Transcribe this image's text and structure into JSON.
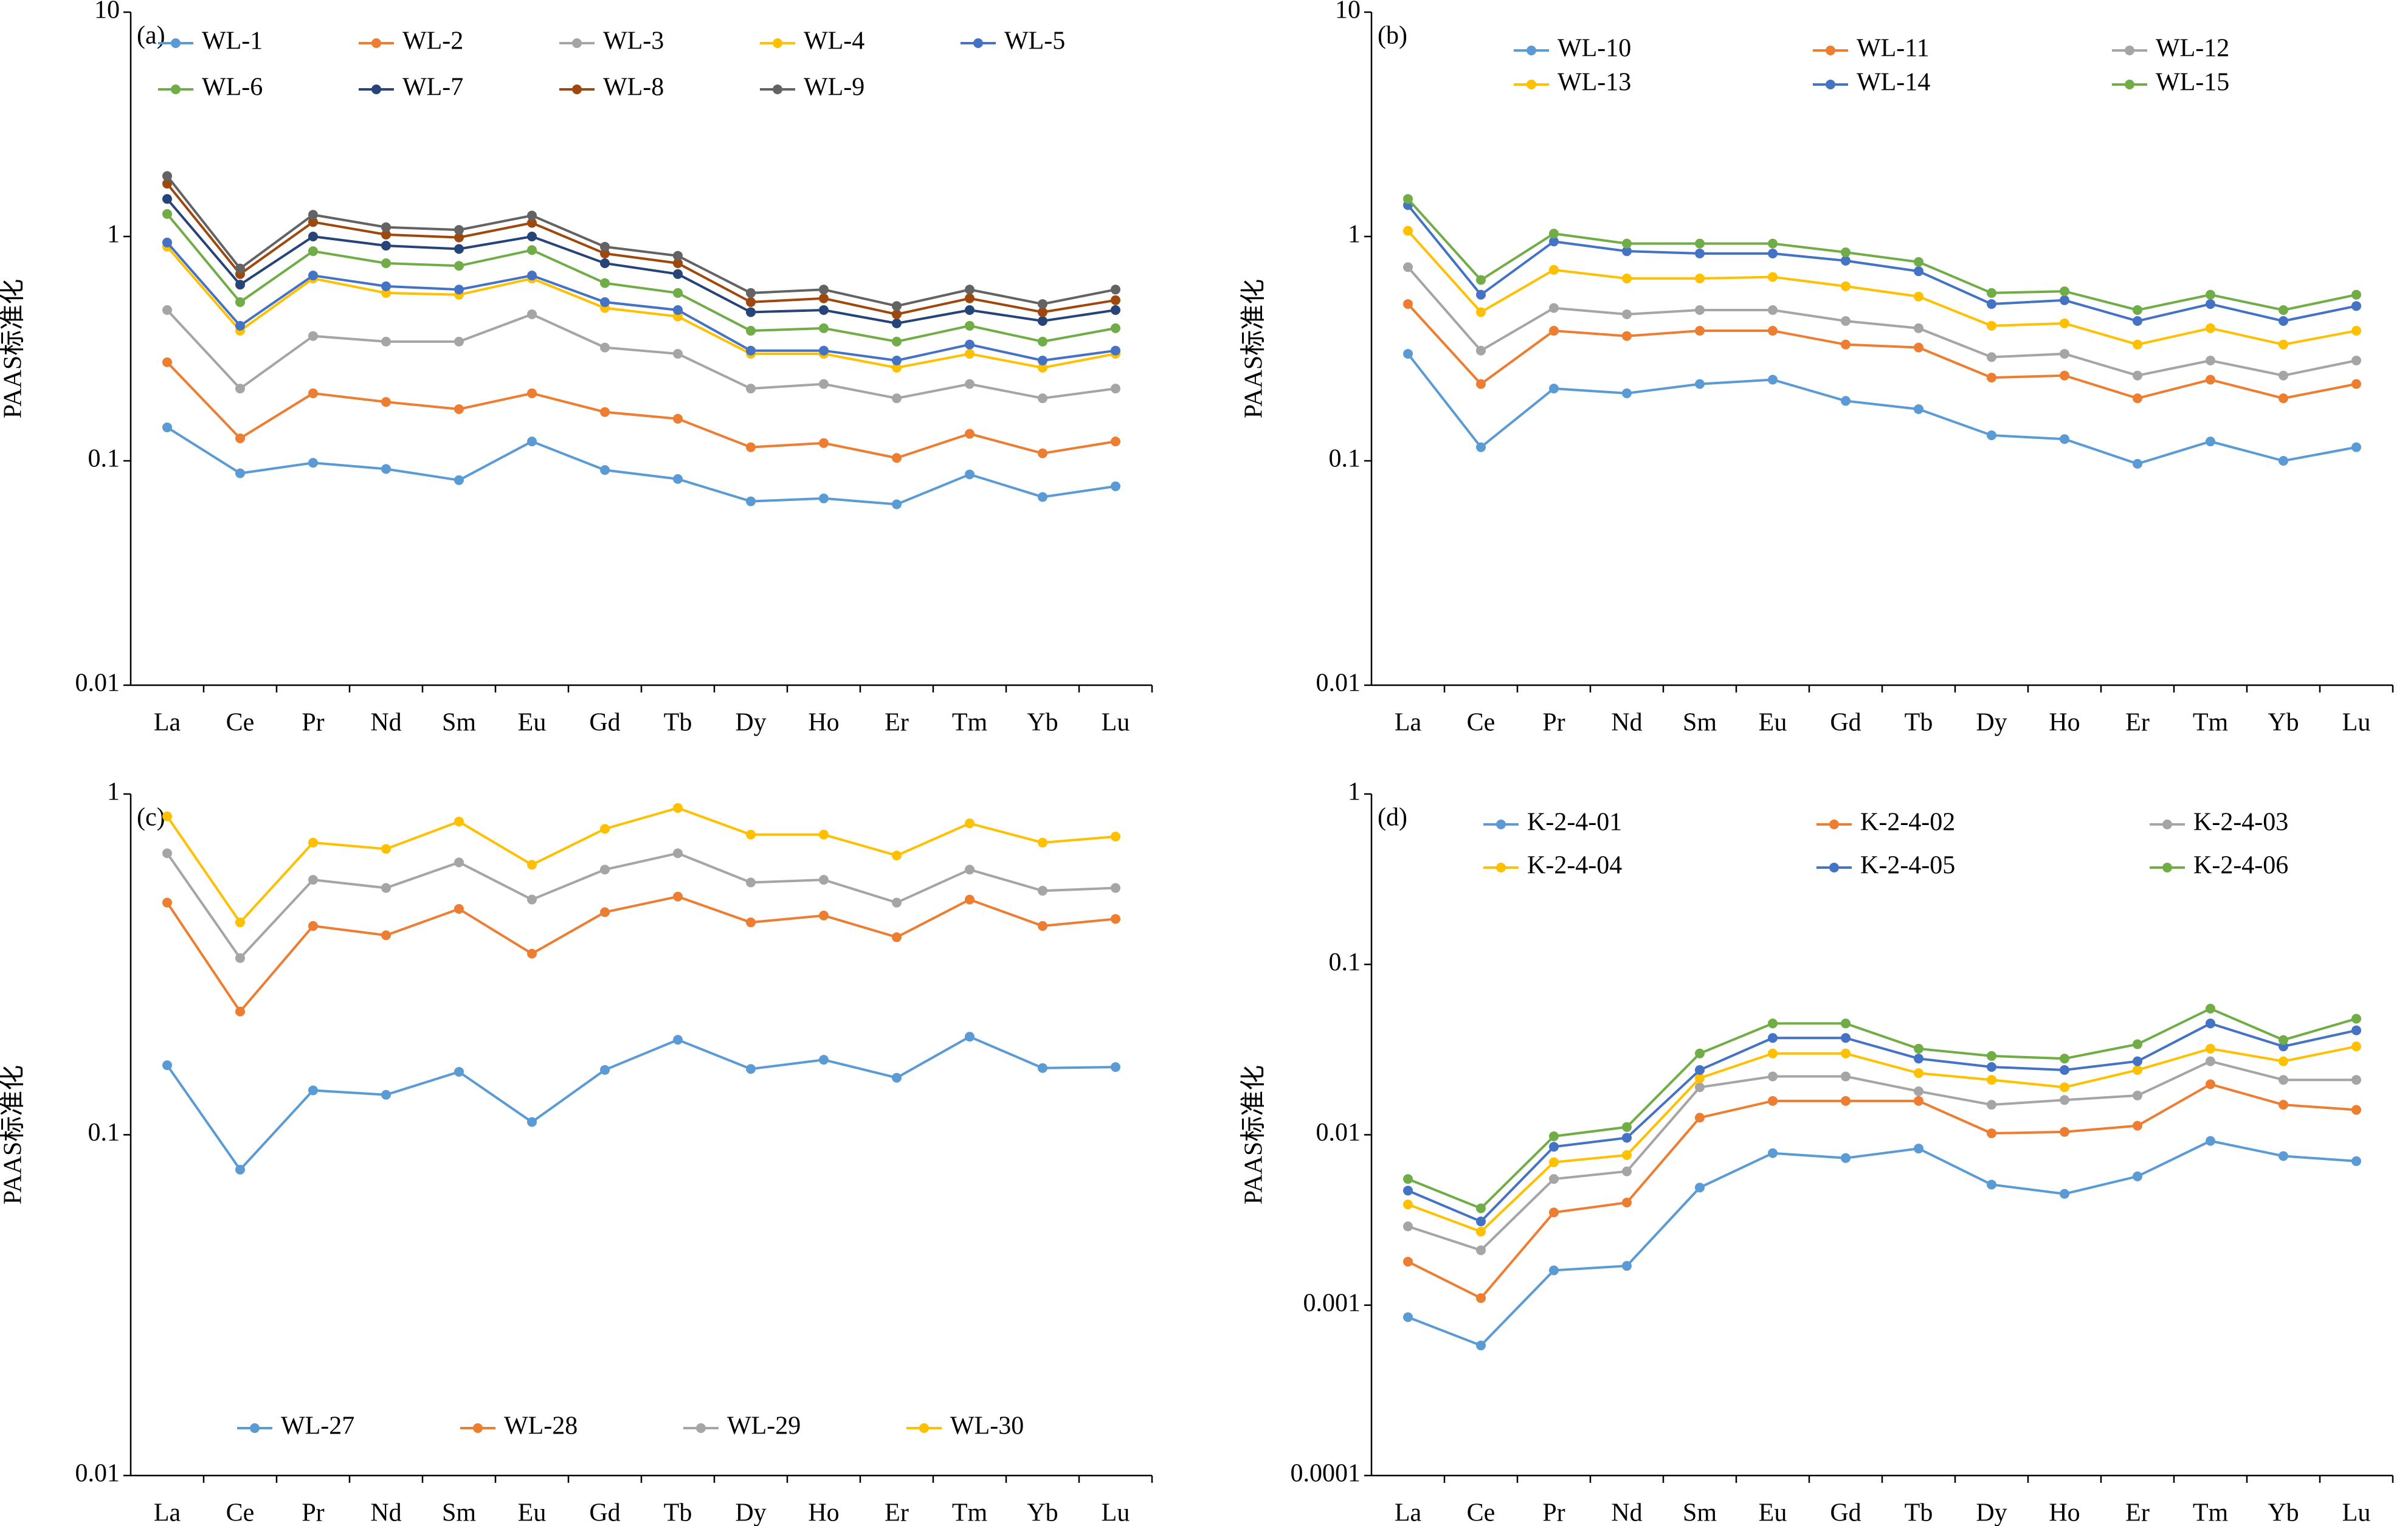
{
  "chart_data": [
    {
      "type": "line",
      "title": "(a)",
      "y_label": "PAAS标准化",
      "yscale": "log",
      "grid": false,
      "legend": "top",
      "categories": [
        "La",
        "Ce",
        "Pr",
        "Nd",
        "Sm",
        "Eu",
        "Gd",
        "Tb",
        "Dy",
        "Ho",
        "Er",
        "Tm",
        "Yb",
        "Lu"
      ],
      "ylim": [
        0.01,
        10
      ],
      "yticks": [
        0.01,
        0.1,
        1,
        10
      ],
      "series": [
        {
          "name": "WL-1",
          "color": "#5b9bd5",
          "values": [
            0.141,
            0.088,
            0.098,
            0.092,
            0.082,
            0.122,
            0.091,
            0.083,
            0.066,
            0.068,
            0.064,
            0.087,
            0.069,
            0.077
          ]
        },
        {
          "name": "WL-2",
          "color": "#ed7d31",
          "values": [
            0.275,
            0.126,
            0.2,
            0.183,
            0.17,
            0.2,
            0.165,
            0.154,
            0.115,
            0.12,
            0.103,
            0.132,
            0.108,
            0.122
          ]
        },
        {
          "name": "WL-3",
          "color": "#a5a5a5",
          "values": [
            0.47,
            0.21,
            0.36,
            0.34,
            0.34,
            0.45,
            0.32,
            0.3,
            0.21,
            0.22,
            0.19,
            0.22,
            0.19,
            0.21
          ]
        },
        {
          "name": "WL-4",
          "color": "#ffc000",
          "values": [
            0.9,
            0.38,
            0.65,
            0.56,
            0.55,
            0.65,
            0.48,
            0.44,
            0.3,
            0.3,
            0.26,
            0.3,
            0.26,
            0.3
          ]
        },
        {
          "name": "WL-5",
          "color": "#4472c4",
          "values": [
            0.94,
            0.4,
            0.67,
            0.6,
            0.58,
            0.67,
            0.51,
            0.47,
            0.31,
            0.31,
            0.28,
            0.33,
            0.28,
            0.31
          ]
        },
        {
          "name": "WL-6",
          "color": "#70ad47",
          "values": [
            1.26,
            0.51,
            0.86,
            0.76,
            0.74,
            0.87,
            0.62,
            0.56,
            0.38,
            0.39,
            0.34,
            0.4,
            0.34,
            0.39
          ]
        },
        {
          "name": "WL-7",
          "color": "#264478",
          "values": [
            1.47,
            0.61,
            1.0,
            0.91,
            0.88,
            1.0,
            0.76,
            0.68,
            0.46,
            0.47,
            0.41,
            0.47,
            0.42,
            0.47
          ]
        },
        {
          "name": "WL-8",
          "color": "#9e480e",
          "values": [
            1.72,
            0.68,
            1.16,
            1.02,
            0.99,
            1.15,
            0.84,
            0.76,
            0.51,
            0.53,
            0.45,
            0.53,
            0.46,
            0.52
          ]
        },
        {
          "name": "WL-9",
          "color": "#636363",
          "values": [
            1.86,
            0.72,
            1.25,
            1.1,
            1.07,
            1.24,
            0.9,
            0.82,
            0.56,
            0.58,
            0.49,
            0.58,
            0.5,
            0.58
          ]
        }
      ]
    },
    {
      "type": "line",
      "title": "(b)",
      "y_label": "PAAS标准化",
      "yscale": "log",
      "grid": false,
      "legend": "top",
      "categories": [
        "La",
        "Ce",
        "Pr",
        "Nd",
        "Sm",
        "Eu",
        "Gd",
        "Tb",
        "Dy",
        "Ho",
        "Er",
        "Tm",
        "Yb",
        "Lu"
      ],
      "ylim": [
        0.01,
        10
      ],
      "yticks": [
        0.01,
        0.1,
        1,
        10
      ],
      "series": [
        {
          "name": "WL-10",
          "color": "#5b9bd5",
          "values": [
            0.3,
            0.115,
            0.21,
            0.2,
            0.22,
            0.23,
            0.185,
            0.17,
            0.13,
            0.125,
            0.097,
            0.122,
            0.1,
            0.115
          ]
        },
        {
          "name": "WL-11",
          "color": "#ed7d31",
          "values": [
            0.5,
            0.22,
            0.38,
            0.36,
            0.38,
            0.38,
            0.33,
            0.32,
            0.235,
            0.24,
            0.19,
            0.23,
            0.19,
            0.22
          ]
        },
        {
          "name": "WL-12",
          "color": "#a5a5a5",
          "values": [
            0.73,
            0.31,
            0.48,
            0.45,
            0.47,
            0.47,
            0.42,
            0.39,
            0.29,
            0.3,
            0.24,
            0.28,
            0.24,
            0.28
          ]
        },
        {
          "name": "WL-13",
          "color": "#ffc000",
          "values": [
            1.06,
            0.46,
            0.71,
            0.65,
            0.65,
            0.66,
            0.6,
            0.54,
            0.4,
            0.41,
            0.33,
            0.39,
            0.33,
            0.38
          ]
        },
        {
          "name": "WL-14",
          "color": "#4472c4",
          "values": [
            1.38,
            0.55,
            0.95,
            0.86,
            0.84,
            0.84,
            0.78,
            0.7,
            0.5,
            0.52,
            0.42,
            0.5,
            0.42,
            0.49
          ]
        },
        {
          "name": "WL-15",
          "color": "#70ad47",
          "values": [
            1.47,
            0.64,
            1.03,
            0.93,
            0.93,
            0.93,
            0.85,
            0.77,
            0.56,
            0.57,
            0.47,
            0.55,
            0.47,
            0.55
          ]
        }
      ]
    },
    {
      "type": "line",
      "title": "(c)",
      "y_label": "PAAS标准化",
      "yscale": "log",
      "grid": false,
      "legend": "bottom",
      "categories": [
        "La",
        "Ce",
        "Pr",
        "Nd",
        "Sm",
        "Eu",
        "Gd",
        "Tb",
        "Dy",
        "Ho",
        "Er",
        "Tm",
        "Yb",
        "Lu"
      ],
      "ylim": [
        0.01,
        1
      ],
      "yticks": [
        0.01,
        0.1,
        1
      ],
      "series": [
        {
          "name": "WL-27",
          "color": "#5b9bd5",
          "values": [
            0.16,
            0.079,
            0.135,
            0.131,
            0.153,
            0.109,
            0.155,
            0.19,
            0.156,
            0.166,
            0.147,
            0.194,
            0.157,
            0.158
          ]
        },
        {
          "name": "WL-28",
          "color": "#ed7d31",
          "values": [
            0.48,
            0.23,
            0.41,
            0.385,
            0.46,
            0.34,
            0.45,
            0.5,
            0.42,
            0.44,
            0.38,
            0.49,
            0.41,
            0.43
          ]
        },
        {
          "name": "WL-29",
          "color": "#a5a5a5",
          "values": [
            0.67,
            0.33,
            0.56,
            0.53,
            0.63,
            0.49,
            0.6,
            0.67,
            0.55,
            0.56,
            0.48,
            0.6,
            0.52,
            0.53
          ]
        },
        {
          "name": "WL-30",
          "color": "#ffc000",
          "values": [
            0.86,
            0.42,
            0.72,
            0.69,
            0.83,
            0.62,
            0.79,
            0.91,
            0.76,
            0.76,
            0.66,
            0.82,
            0.72,
            0.75
          ]
        }
      ]
    },
    {
      "type": "line",
      "title": "(d)",
      "y_label": "PAAS标准化",
      "yscale": "log",
      "grid": false,
      "legend": "top",
      "categories": [
        "La",
        "Ce",
        "Pr",
        "Nd",
        "Sm",
        "Eu",
        "Gd",
        "Tb",
        "Dy",
        "Ho",
        "Er",
        "Tm",
        "Yb",
        "Lu"
      ],
      "ylim": [
        0.0001,
        1
      ],
      "yticks": [
        0.0001,
        0.001,
        0.01,
        0.1,
        1
      ],
      "series": [
        {
          "name": "K-2-4-01",
          "color": "#5b9bd5",
          "values": [
            0.00085,
            0.00058,
            0.0016,
            0.0017,
            0.0049,
            0.0078,
            0.0073,
            0.0083,
            0.0051,
            0.0045,
            0.0057,
            0.0092,
            0.0075,
            0.007
          ]
        },
        {
          "name": "K-2-4-02",
          "color": "#ed7d31",
          "values": [
            0.0018,
            0.0011,
            0.0035,
            0.004,
            0.0126,
            0.0158,
            0.0158,
            0.0158,
            0.0102,
            0.0104,
            0.0113,
            0.0198,
            0.015,
            0.014
          ]
        },
        {
          "name": "K-2-4-03",
          "color": "#a5a5a5",
          "values": [
            0.0029,
            0.0021,
            0.0055,
            0.0061,
            0.019,
            0.022,
            0.022,
            0.018,
            0.015,
            0.016,
            0.017,
            0.027,
            0.021,
            0.021
          ]
        },
        {
          "name": "K-2-4-04",
          "color": "#ffc000",
          "values": [
            0.0039,
            0.0027,
            0.0069,
            0.0076,
            0.0215,
            0.03,
            0.03,
            0.023,
            0.021,
            0.019,
            0.024,
            0.032,
            0.027,
            0.033
          ]
        },
        {
          "name": "K-2-4-05",
          "color": "#4472c4",
          "values": [
            0.0047,
            0.0031,
            0.0085,
            0.0096,
            0.024,
            0.037,
            0.037,
            0.028,
            0.025,
            0.024,
            0.027,
            0.045,
            0.033,
            0.041
          ]
        },
        {
          "name": "K-2-4-06",
          "color": "#70ad47",
          "values": [
            0.0055,
            0.0037,
            0.0098,
            0.0111,
            0.03,
            0.045,
            0.045,
            0.032,
            0.029,
            0.028,
            0.034,
            0.055,
            0.036,
            0.048
          ]
        }
      ]
    }
  ]
}
